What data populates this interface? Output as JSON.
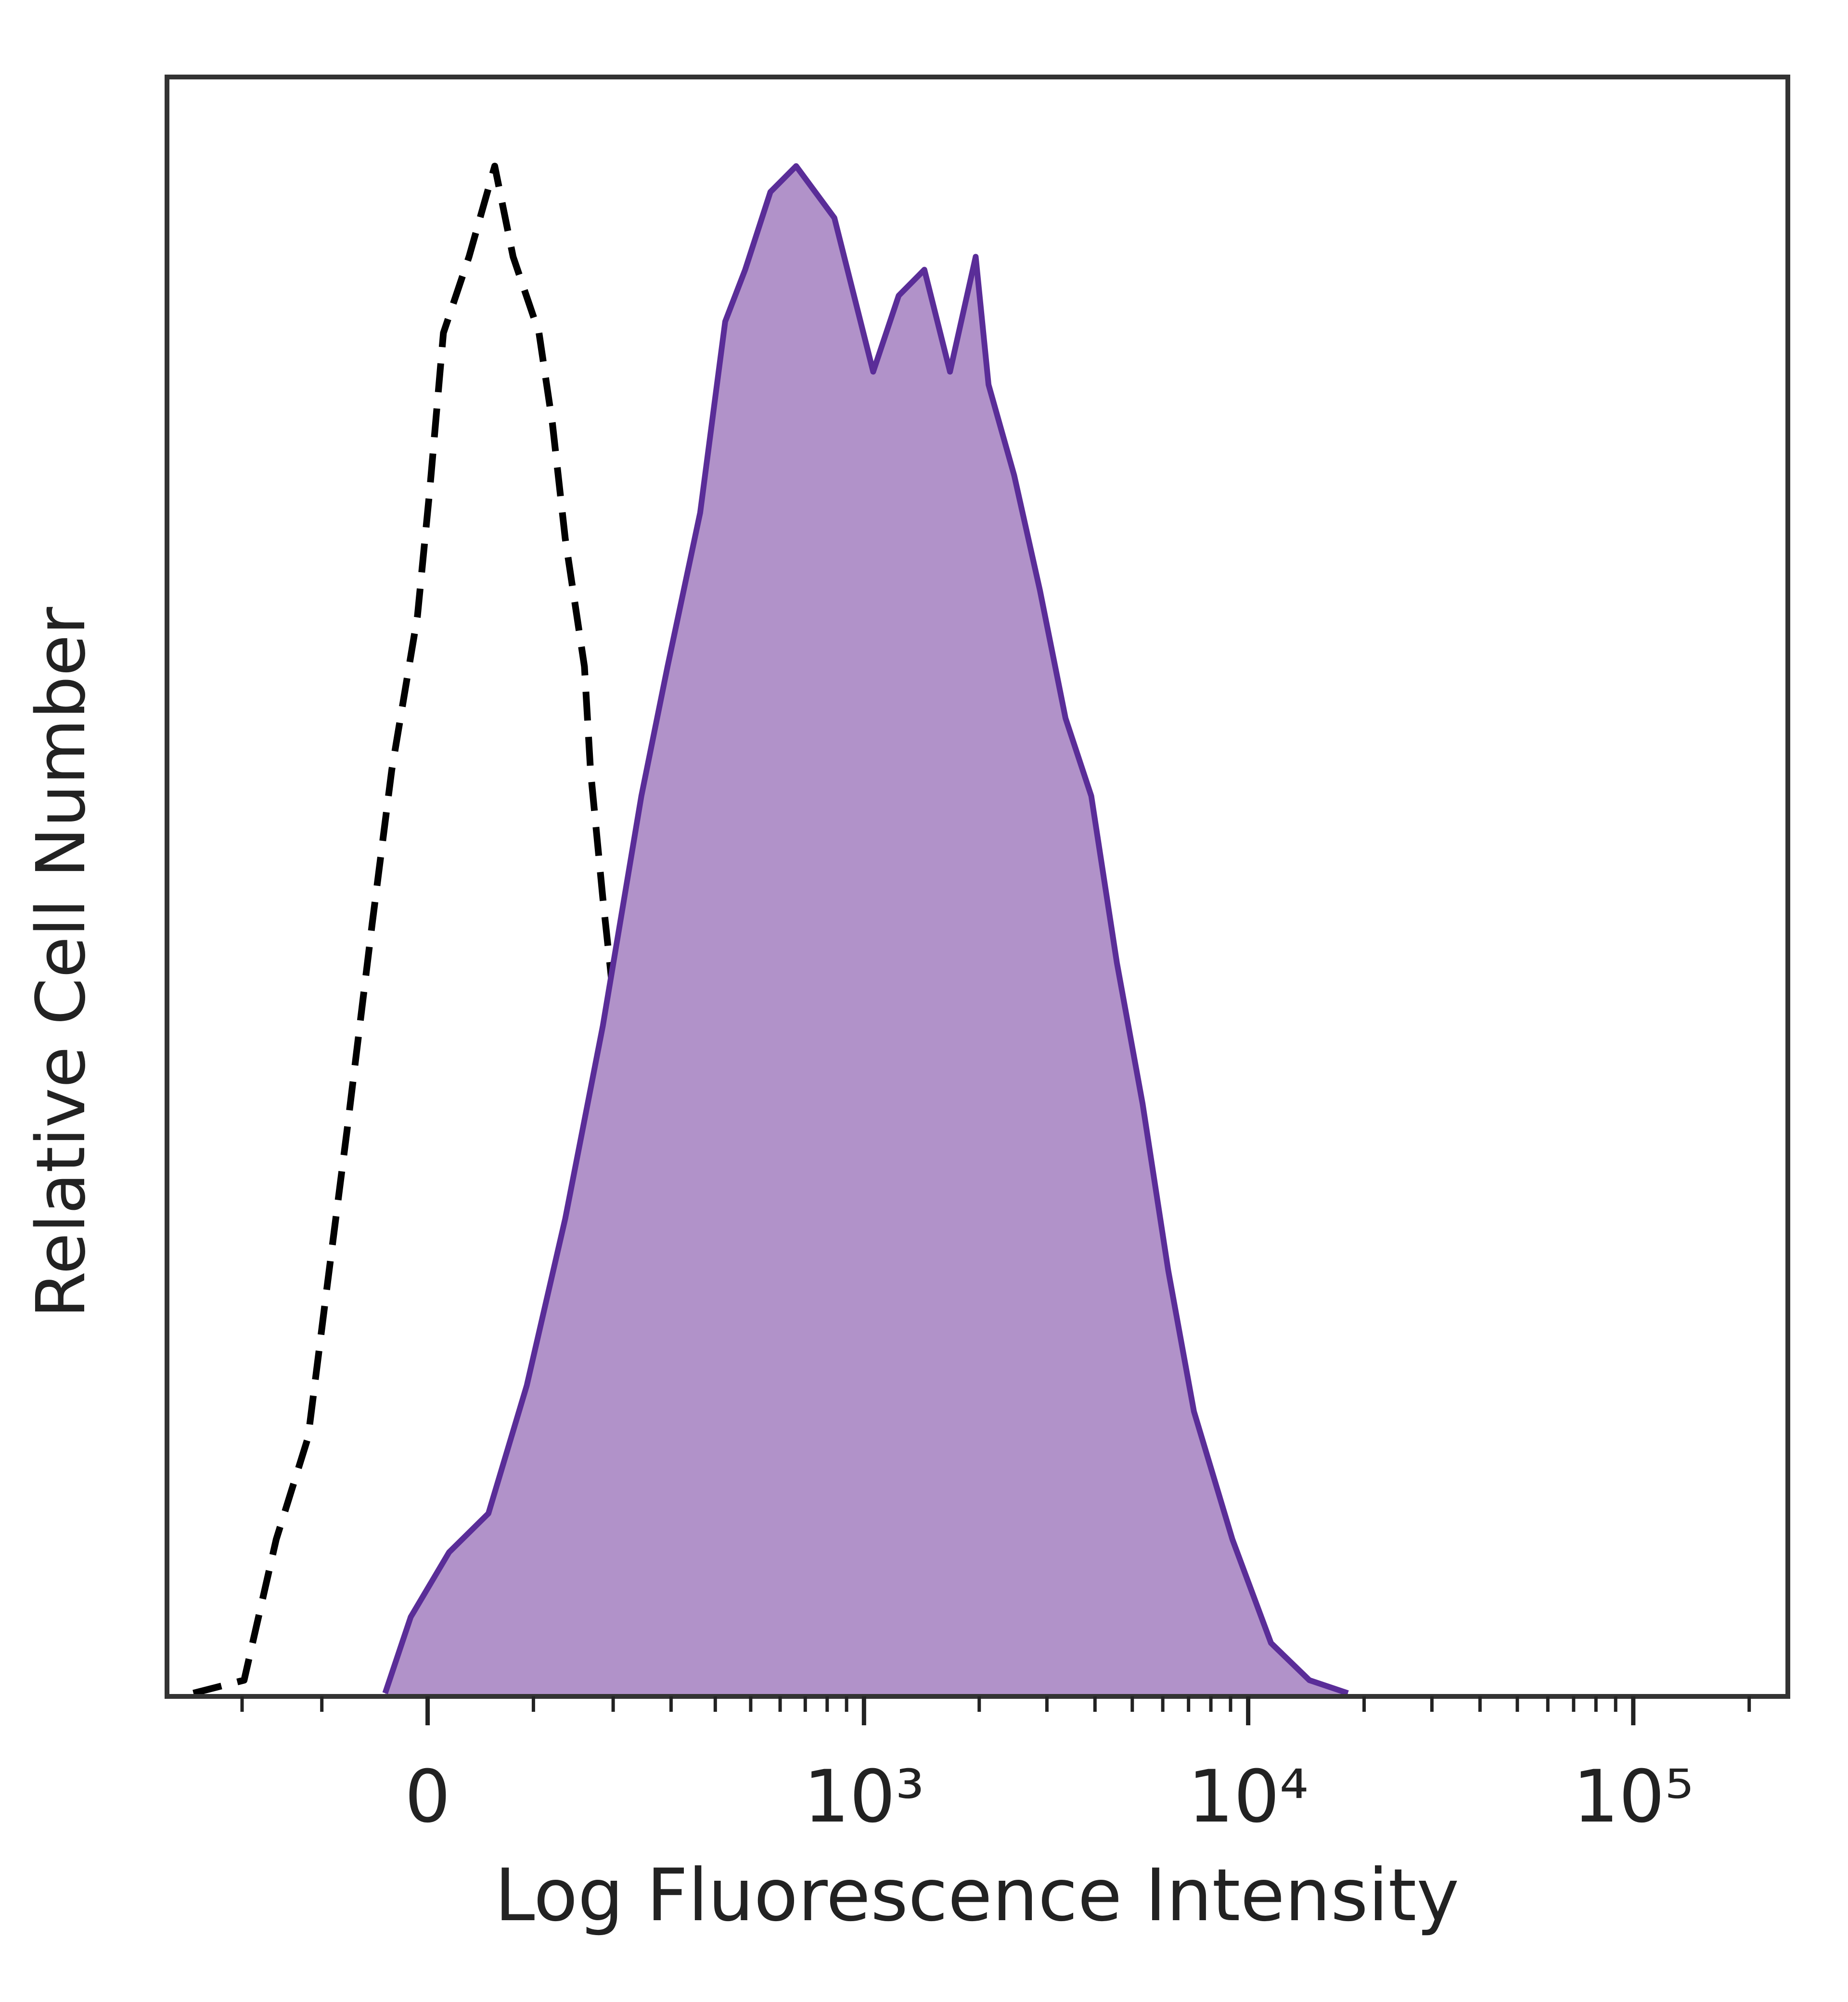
{
  "chart_data": {
    "type": "line",
    "x_label": "Log Fluorescence Intensity",
    "y_label": "Relative Cell Number",
    "xscale": "biexponential",
    "xlim": [
      -336,
      252000
    ],
    "ylim": [
      0,
      100
    ],
    "xticks": [
      0,
      {
        "value": 1000,
        "label": "10³"
      },
      {
        "value": 10000,
        "label": "10⁴"
      },
      {
        "value": 100000,
        "label": "10⁵"
      }
    ],
    "xminorticks": [
      -200,
      -100,
      100,
      200,
      300,
      400,
      500,
      600,
      700,
      800,
      900,
      2000,
      3000,
      4000,
      5000,
      6000,
      7000,
      8000,
      9000,
      20000,
      30000,
      40000,
      50000,
      60000,
      70000,
      80000,
      90000,
      200000
    ],
    "series": [
      {
        "color": "#000000",
        "linestyle": "dashed",
        "x": [
          -282,
          -197,
          -153,
          -115,
          -94,
          -74,
          -50,
          -32,
          -9,
          2,
          14,
          37,
          61,
          79,
          106,
          121,
          136,
          160,
          168,
          185,
          205,
          236,
          270,
          320,
          408,
          565,
          836
        ],
        "values": [
          0.2,
          1.0,
          9.7,
          16.0,
          25.5,
          35.0,
          47.7,
          57.2,
          66.7,
          74.6,
          84.2,
          88.9,
          94.5,
          88.9,
          84.2,
          78.6,
          71.5,
          63.6,
          57.2,
          49.3,
          41.4,
          29.5,
          21.6,
          13.6,
          5.7,
          1.0,
          0.2
        ]
      },
      {
        "color": "#5a2d98",
        "fill": "#b192c9",
        "linestyle": "solid",
        "x": [
          -38,
          -15,
          19,
          55,
          93,
          136,
          185,
          245,
          293,
          363,
          426,
          483,
          565,
          662,
          836,
          1057,
          1233,
          1439,
          1678,
          1958,
          2115,
          2466,
          2877,
          3354,
          3912,
          4560,
          5318,
          6200,
          7230,
          9100,
          11460,
          14420,
          18150
        ],
        "values": [
          0.2,
          4.9,
          8.9,
          11.3,
          19.2,
          29.5,
          41.4,
          55.6,
          63.6,
          73.1,
          84.9,
          88.1,
          92.9,
          94.5,
          91.3,
          81.8,
          86.5,
          88.1,
          81.8,
          88.9,
          81.0,
          75.4,
          68.3,
          60.4,
          55.6,
          45.3,
          36.6,
          26.3,
          17.6,
          9.7,
          3.3,
          1.0,
          0.2
        ]
      }
    ]
  }
}
